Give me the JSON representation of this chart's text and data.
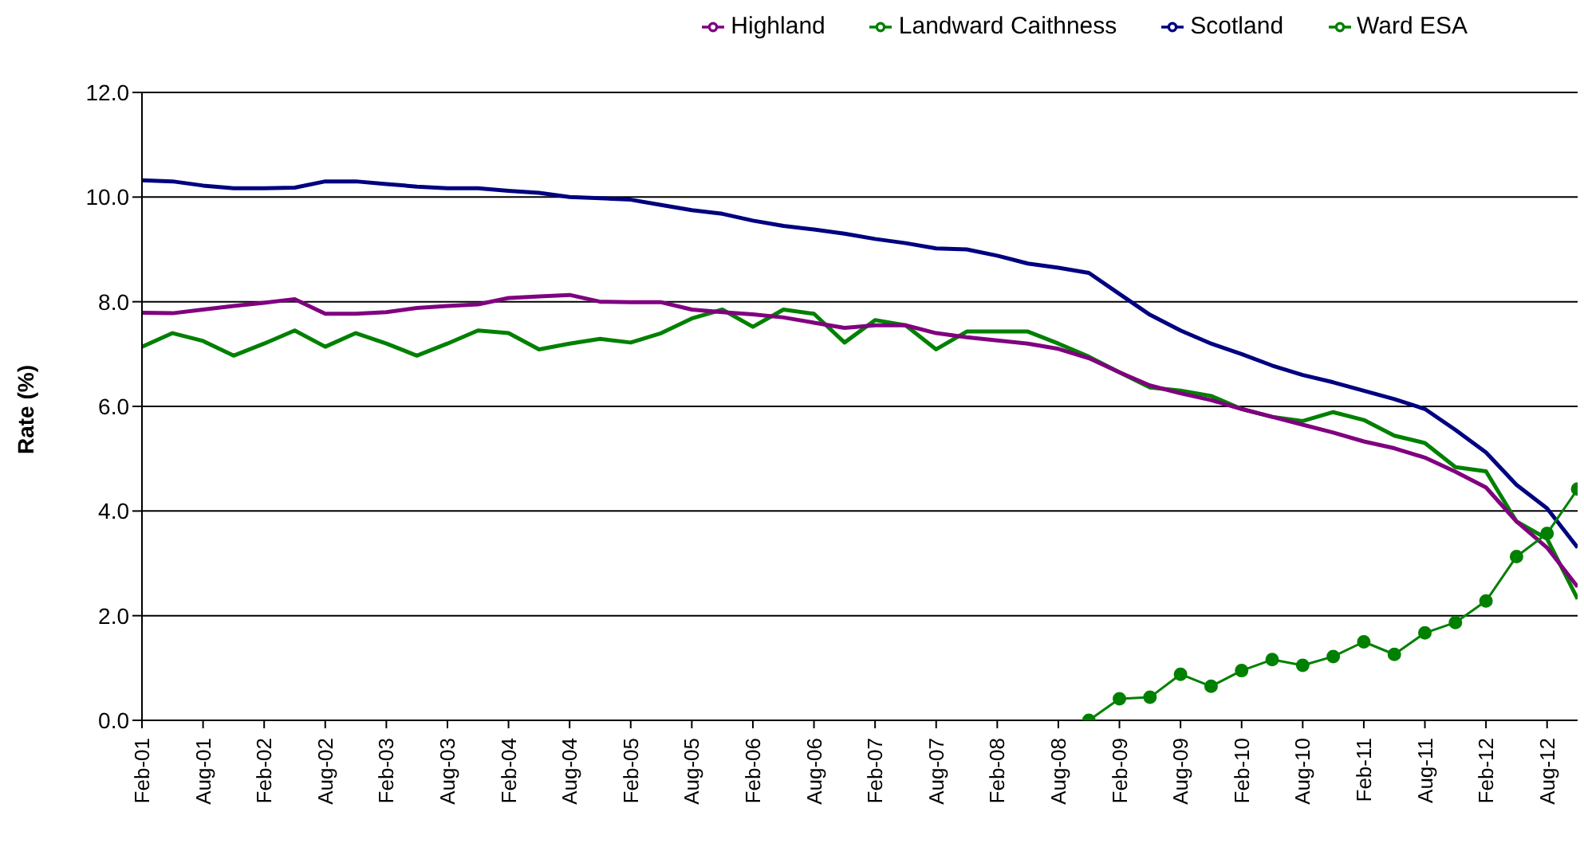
{
  "chart_data": {
    "type": "line",
    "ylabel": "Rate (%)",
    "categories": [
      "Feb-01",
      null,
      "Aug-01",
      null,
      "Feb-02",
      null,
      "Aug-02",
      null,
      "Feb-03",
      null,
      "Aug-03",
      null,
      "Feb-04",
      null,
      "Aug-04",
      null,
      "Feb-05",
      null,
      "Aug-05",
      null,
      "Feb-06",
      null,
      "Aug-06",
      null,
      "Feb-07",
      null,
      "Aug-07",
      null,
      "Feb-08",
      null,
      "Aug-08",
      null,
      "Feb-09",
      null,
      "Aug-09",
      null,
      "Feb-10",
      null,
      "Aug-10",
      null,
      "Feb-11",
      null,
      "Aug-11",
      null,
      "Feb-12",
      null,
      "Aug-12",
      null
    ],
    "ylim": [
      0,
      12
    ],
    "yticks": [
      {
        "value": 0,
        "label": "0.0"
      },
      {
        "value": 2,
        "label": "2.0"
      },
      {
        "value": 4,
        "label": "4.0"
      },
      {
        "value": 6,
        "label": "6.0"
      },
      {
        "value": 8,
        "label": "8.0"
      },
      {
        "value": 10,
        "label": "10.0"
      },
      {
        "value": 12,
        "label": "12.0"
      }
    ],
    "grid": "y",
    "legend": "top",
    "line_style": "solid",
    "series": [
      {
        "name": "Landward Caithness",
        "color": "#008000",
        "marker": "none",
        "values": [
          7.14,
          7.4,
          7.25,
          6.97,
          7.2,
          7.45,
          7.14,
          7.4,
          7.2,
          6.97,
          7.2,
          7.45,
          7.4,
          7.09,
          7.2,
          7.29,
          7.22,
          7.4,
          7.68,
          7.85,
          7.52,
          7.85,
          7.77,
          7.22,
          7.65,
          7.55,
          7.09,
          7.43,
          7.43,
          7.43,
          7.2,
          6.95,
          6.65,
          6.36,
          6.3,
          6.2,
          5.95,
          5.8,
          5.72,
          5.89,
          5.74,
          5.44,
          5.3,
          4.84,
          4.76,
          3.8,
          3.47,
          2.32
        ]
      },
      {
        "name": "Highland",
        "color": "#800080",
        "marker": "none",
        "values": [
          7.79,
          7.78,
          7.85,
          7.92,
          7.98,
          8.05,
          7.77,
          7.77,
          7.8,
          7.88,
          7.92,
          7.95,
          8.07,
          8.1,
          8.13,
          8.0,
          7.99,
          7.99,
          7.85,
          7.8,
          7.76,
          7.7,
          7.6,
          7.5,
          7.55,
          7.55,
          7.4,
          7.32,
          7.26,
          7.2,
          7.1,
          6.92,
          6.65,
          6.4,
          6.25,
          6.12,
          5.95,
          5.8,
          5.65,
          5.5,
          5.33,
          5.2,
          5.02,
          4.75,
          4.45,
          3.8,
          3.3,
          2.55
        ]
      },
      {
        "name": "Scotland",
        "color": "#000080",
        "marker": "none",
        "values": [
          10.32,
          10.3,
          10.22,
          10.17,
          10.17,
          10.18,
          10.3,
          10.3,
          10.25,
          10.2,
          10.17,
          10.17,
          10.12,
          10.08,
          10.0,
          9.98,
          9.95,
          9.85,
          9.75,
          9.68,
          9.55,
          9.45,
          9.38,
          9.3,
          9.2,
          9.12,
          9.02,
          9.0,
          8.88,
          8.73,
          8.65,
          8.55,
          8.15,
          7.75,
          7.45,
          7.2,
          7.0,
          6.78,
          6.6,
          6.46,
          6.3,
          6.14,
          5.95,
          5.55,
          5.12,
          4.5,
          4.05,
          3.3
        ]
      },
      {
        "name": "Ward ESA",
        "color": "#008000",
        "marker": "circle",
        "values": [
          null,
          null,
          null,
          null,
          null,
          null,
          null,
          null,
          null,
          null,
          null,
          null,
          null,
          null,
          null,
          null,
          null,
          null,
          null,
          null,
          null,
          null,
          null,
          null,
          null,
          null,
          null,
          null,
          null,
          null,
          null,
          0,
          0.41,
          0.44,
          0.88,
          0.65,
          0.95,
          1.16,
          1.05,
          1.22,
          1.5,
          1.26,
          1.67,
          1.87,
          2.28,
          3.13,
          3.57,
          4.42
        ]
      }
    ]
  }
}
